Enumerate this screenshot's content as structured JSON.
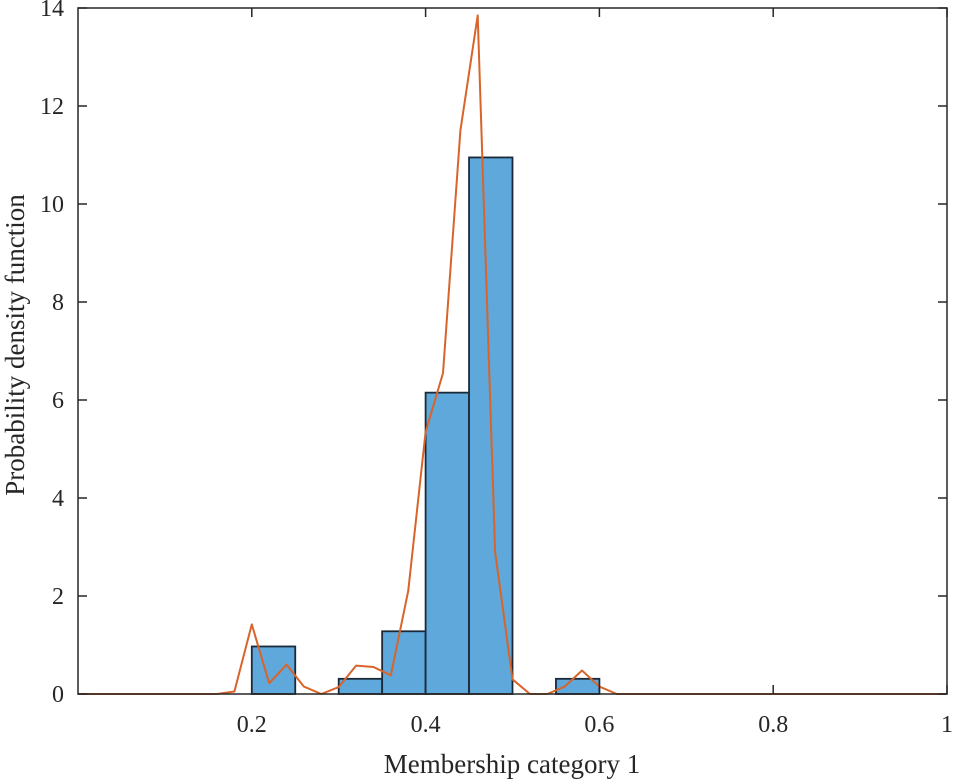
{
  "chart_data": {
    "type": "bar",
    "xlabel": "Membership category 1",
    "ylabel": "Probability density function",
    "xlim": [
      0,
      1
    ],
    "ylim": [
      0,
      14
    ],
    "xticks": [
      0.2,
      0.4,
      0.6,
      0.8,
      1
    ],
    "xtick_labels": [
      "0.2",
      "0.4",
      "0.6",
      "0.8",
      "1"
    ],
    "yticks": [
      0,
      2,
      4,
      6,
      8,
      10,
      12,
      14
    ],
    "ytick_labels": [
      "0",
      "2",
      "4",
      "6",
      "8",
      "10",
      "12",
      "14"
    ],
    "grid": false,
    "legend": "none",
    "histogram": {
      "bin_edges": [
        0.2,
        0.25,
        0.3,
        0.35,
        0.4,
        0.45,
        0.5,
        0.55,
        0.6
      ],
      "values": [
        0.97,
        0,
        0.31,
        1.28,
        6.15,
        10.95,
        0,
        0.31
      ],
      "color": "#5fa8db",
      "edge_color": "#1a2a3a"
    },
    "density_line": {
      "color": "#d9642a",
      "x": [
        0,
        0.02,
        0.04,
        0.06,
        0.08,
        0.1,
        0.12,
        0.14,
        0.16,
        0.18,
        0.2,
        0.22,
        0.24,
        0.26,
        0.28,
        0.3,
        0.32,
        0.34,
        0.36,
        0.38,
        0.4,
        0.42,
        0.44,
        0.46,
        0.48,
        0.5,
        0.52,
        0.54,
        0.56,
        0.58,
        0.6,
        0.62,
        0.64,
        0.66,
        0.68,
        0.7,
        0.8,
        0.9,
        1.0
      ],
      "y": [
        0,
        0,
        0,
        0,
        0,
        0,
        0,
        0,
        0,
        0.05,
        1.42,
        0.22,
        0.6,
        0.15,
        0.0,
        0.14,
        0.58,
        0.55,
        0.38,
        2.1,
        5.35,
        6.55,
        11.5,
        13.85,
        2.9,
        0.3,
        0.0,
        0.0,
        0.15,
        0.48,
        0.15,
        0.0,
        0.0,
        0,
        0,
        0,
        0,
        0,
        0
      ]
    }
  }
}
